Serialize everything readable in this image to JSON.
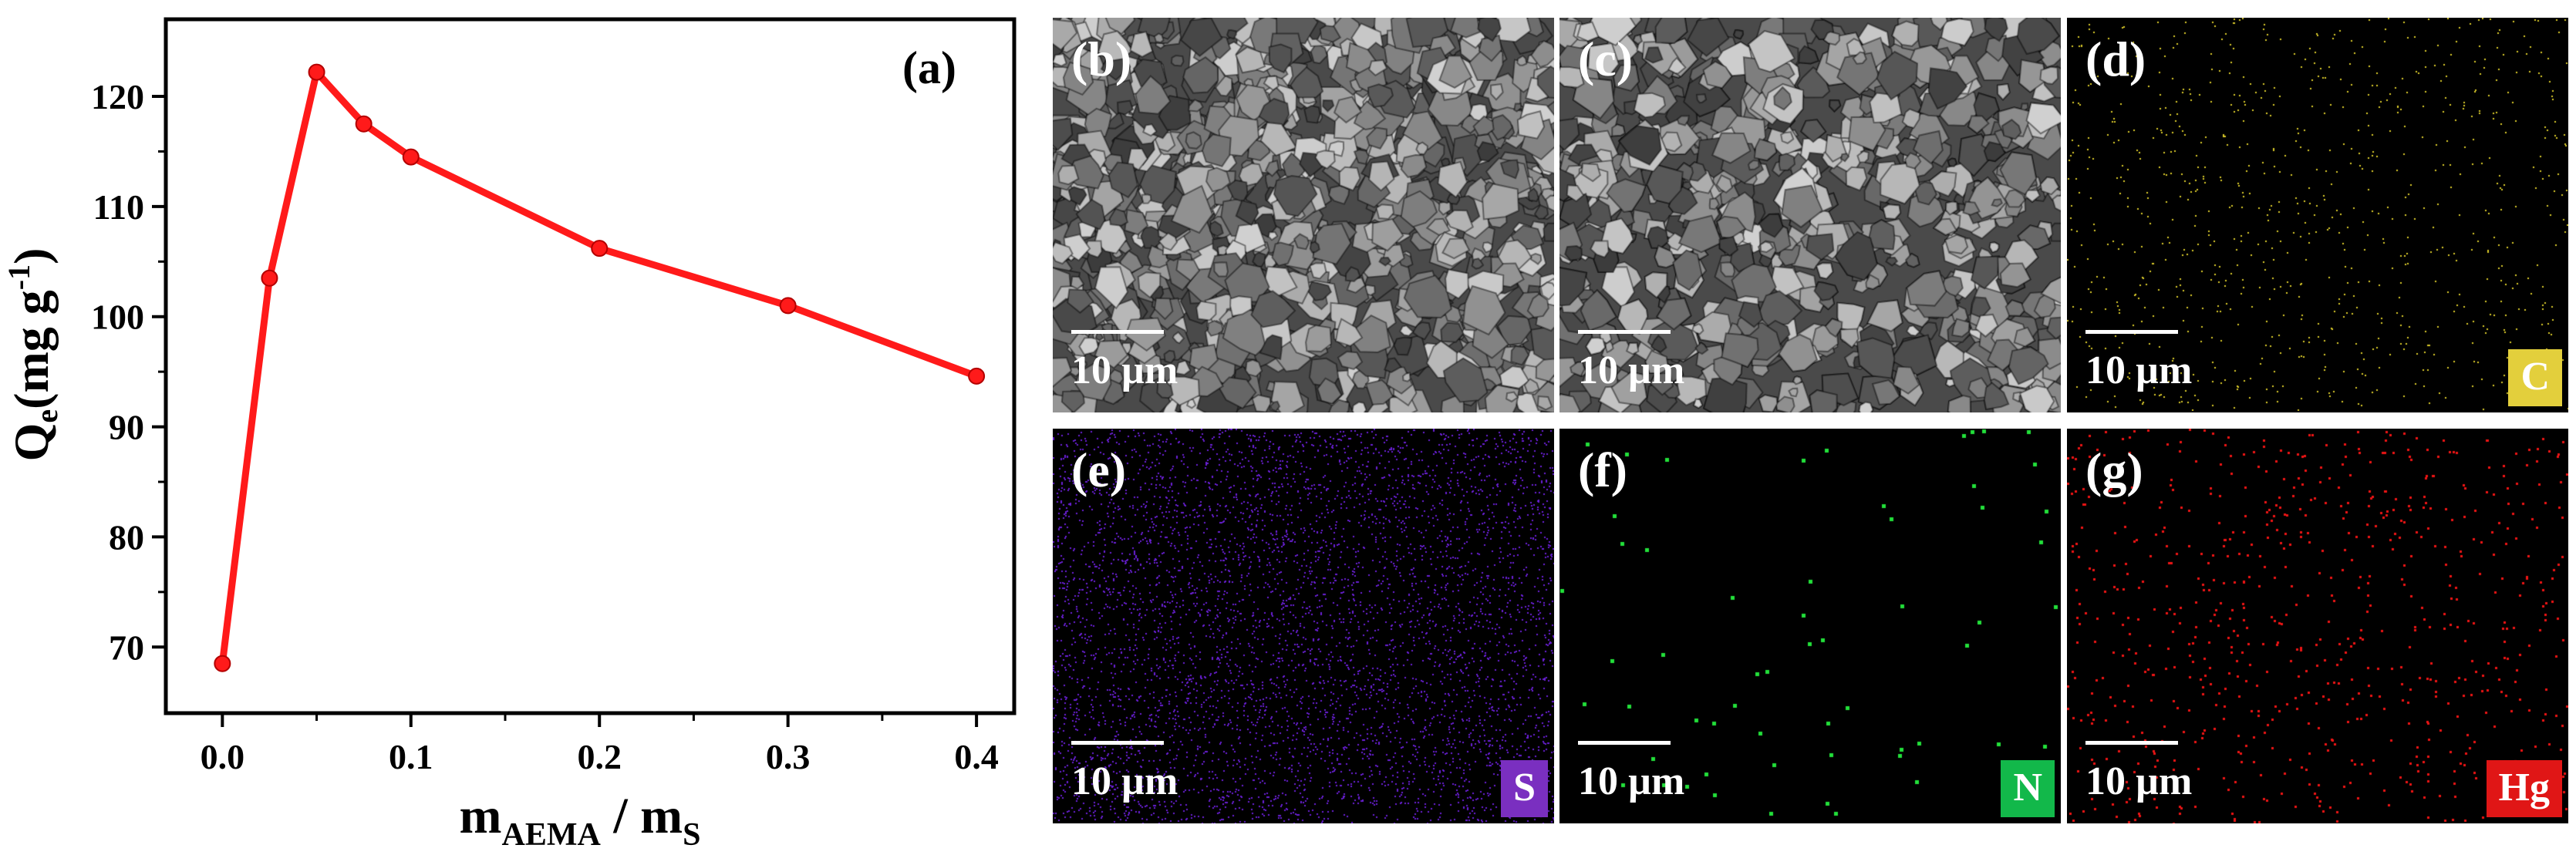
{
  "chart_data": {
    "type": "line",
    "panel_label": "(a)",
    "xlabel": {
      "main": "m",
      "sub1": "AEMA",
      "sep": " / m",
      "sub2": "S"
    },
    "ylabel": {
      "main": "Q",
      "sub": "e",
      "rest": "(mg g",
      "sup": "-1",
      "close": ")"
    },
    "xlim": [
      -0.03,
      0.42
    ],
    "ylim": [
      64,
      127
    ],
    "xticks": [
      "0.0",
      "0.1",
      "0.2",
      "0.3",
      "0.4"
    ],
    "yticks": [
      "70",
      "80",
      "90",
      "100",
      "110",
      "120"
    ],
    "x": [
      0.0,
      0.025,
      0.05,
      0.075,
      0.1,
      0.2,
      0.3,
      0.4
    ],
    "y": [
      68.5,
      103.5,
      122.2,
      117.5,
      114.5,
      106.2,
      101.0,
      94.6
    ],
    "line_color": "#ff1a1a"
  },
  "images": [
    {
      "label": "(b)",
      "scale": "10 µm",
      "kind": "sem"
    },
    {
      "label": "(c)",
      "scale": "10 µm",
      "kind": "sem"
    },
    {
      "label": "(d)",
      "scale": "10 µm",
      "element": "C",
      "color": "#e3cf3c",
      "dot": "#d9c92a",
      "density": 0.01,
      "dotsize": 2
    },
    {
      "label": "(e)",
      "scale": "10 µm",
      "element": "S",
      "color": "#7a2fc0",
      "dot": "#6a1fd6",
      "density": 0.06,
      "dotsize": 2
    },
    {
      "label": "(f)",
      "scale": "10 µm",
      "element": "N",
      "color": "#12b84a",
      "dot": "#22e03a",
      "density": 0.0045,
      "dotsize": 5
    },
    {
      "label": "(g)",
      "scale": "10 µm",
      "element": "Hg",
      "color": "#e01616",
      "dot": "#ee1414",
      "density": 0.02,
      "dotsize": 3
    }
  ]
}
